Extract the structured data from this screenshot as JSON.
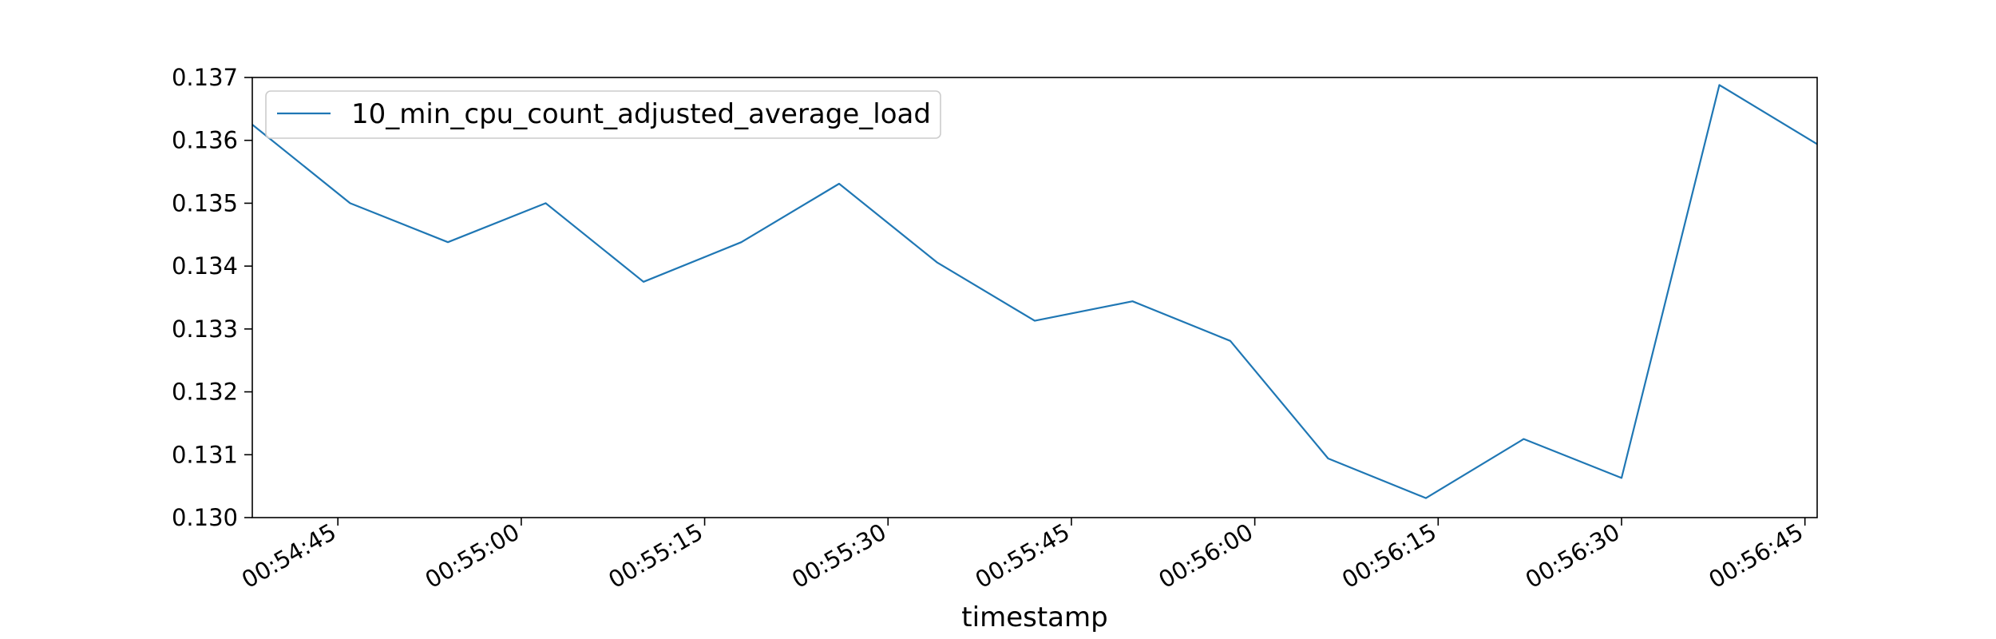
{
  "chart_data": {
    "type": "line",
    "title": "",
    "xlabel": "timestamp",
    "ylabel": "",
    "x_ticks": [
      "00:54:45",
      "00:55:00",
      "00:55:15",
      "00:55:30",
      "00:55:45",
      "00:56:00",
      "00:56:15",
      "00:56:30",
      "00:56:45"
    ],
    "x": [
      "00:54:38",
      "00:54:46",
      "00:54:54",
      "00:55:02",
      "00:55:10",
      "00:55:18",
      "00:55:26",
      "00:55:34",
      "00:55:42",
      "00:55:50",
      "00:55:58",
      "00:56:06",
      "00:56:14",
      "00:56:22",
      "00:56:30",
      "00:56:38",
      "00:56:46"
    ],
    "xlim": [
      "00:54:38",
      "00:56:46"
    ],
    "ylim": [
      0.13,
      0.137
    ],
    "y_ticks": [
      0.13,
      0.131,
      0.132,
      0.133,
      0.134,
      0.135,
      0.136,
      0.137
    ],
    "y_tick_labels": [
      "0.130",
      "0.131",
      "0.132",
      "0.133",
      "0.134",
      "0.135",
      "0.136",
      "0.137"
    ],
    "grid": false,
    "legend": "upper-left",
    "series": [
      {
        "name": "10_min_cpu_count_adjusted_average_load",
        "color": "#1f77b4",
        "values": [
          0.13625,
          0.135,
          0.13438,
          0.135,
          0.13375,
          0.13438,
          0.13531,
          0.13406,
          0.13313,
          0.13344,
          0.13281,
          0.13094,
          0.13031,
          0.13125,
          0.13063,
          0.13688,
          0.13594
        ]
      }
    ]
  }
}
